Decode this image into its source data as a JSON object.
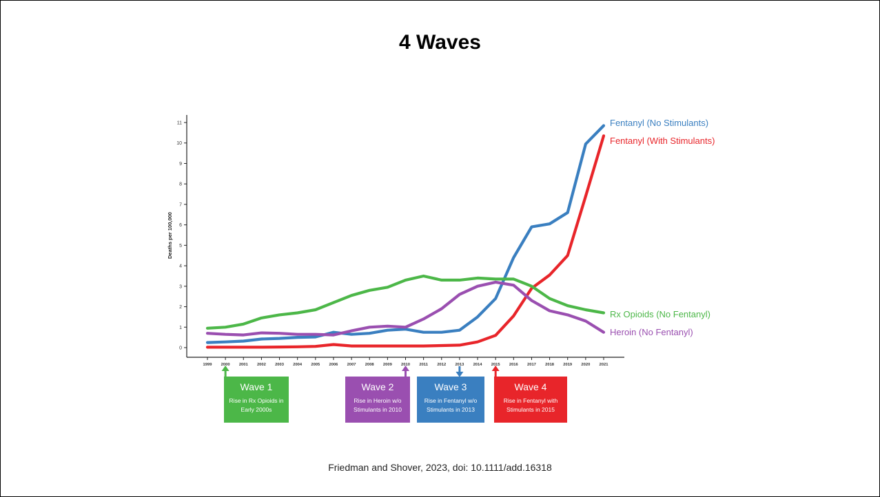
{
  "slide": {
    "title": "4 Waves",
    "citation": "Friedman and Shover, 2023, doi: 10.1111/add.16318"
  },
  "chart_data": {
    "type": "line",
    "title": "",
    "xlabel": "",
    "ylabel": "Deaths per 100,000",
    "x": [
      1999,
      2000,
      2001,
      2002,
      2003,
      2004,
      2005,
      2006,
      2007,
      2008,
      2009,
      2010,
      2011,
      2012,
      2013,
      2014,
      2015,
      2016,
      2017,
      2018,
      2019,
      2020,
      2021
    ],
    "y_ticks": [
      0,
      1,
      2,
      3,
      4,
      5,
      6,
      7,
      8,
      9,
      10,
      11
    ],
    "ylim": [
      0,
      11
    ],
    "grid": false,
    "series": [
      {
        "name": "Fentanyl (No Stimulants)",
        "color": "#3a7fc0",
        "values": [
          0.25,
          0.28,
          0.32,
          0.42,
          0.45,
          0.5,
          0.52,
          0.75,
          0.65,
          0.7,
          0.85,
          0.9,
          0.75,
          0.75,
          0.85,
          1.5,
          2.4,
          4.4,
          5.9,
          6.05,
          6.6,
          9.95,
          10.85
        ]
      },
      {
        "name": "Fentanyl (With Stimulants)",
        "color": "#e8252a",
        "values": [
          0.02,
          0.02,
          0.02,
          0.02,
          0.03,
          0.04,
          0.06,
          0.15,
          0.08,
          0.08,
          0.08,
          0.08,
          0.08,
          0.1,
          0.12,
          0.28,
          0.6,
          1.55,
          2.9,
          3.55,
          4.5,
          7.4,
          10.35
        ]
      },
      {
        "name": "Rx Opioids (No Fentanyl)",
        "color": "#4cb748",
        "values": [
          0.95,
          1.0,
          1.15,
          1.45,
          1.6,
          1.7,
          1.85,
          2.2,
          2.55,
          2.8,
          2.95,
          3.3,
          3.5,
          3.3,
          3.3,
          3.4,
          3.35,
          3.35,
          3.0,
          2.4,
          2.05,
          1.85,
          1.7
        ]
      },
      {
        "name": "Heroin (No Fentanyl)",
        "color": "#9a4fb0",
        "values": [
          0.7,
          0.65,
          0.62,
          0.72,
          0.7,
          0.65,
          0.65,
          0.62,
          0.82,
          1.0,
          1.05,
          1.0,
          1.4,
          1.9,
          2.6,
          3.0,
          3.2,
          3.05,
          2.3,
          1.8,
          1.6,
          1.3,
          0.75
        ]
      }
    ]
  },
  "waves": [
    {
      "title": "Wave 1",
      "desc": "Rise in Rx Opioids in Early 2000s",
      "color": "#4cb748",
      "year": 2000,
      "arrow": "up"
    },
    {
      "title": "Wave 2",
      "desc": "Rise in Heroin w/o Stimulants in 2010",
      "color": "#9a4fb0",
      "year": 2010,
      "arrow": "up"
    },
    {
      "title": "Wave 3",
      "desc": "Rise in Fentanyl w/o Stimulants in 2013",
      "color": "#3a7fc0",
      "year": 2013,
      "arrow": "down"
    },
    {
      "title": "Wave 4",
      "desc": "Rise in Fentanyl with Stimulants in 2015",
      "color": "#e8252a",
      "year": 2015,
      "arrow": "up"
    }
  ]
}
